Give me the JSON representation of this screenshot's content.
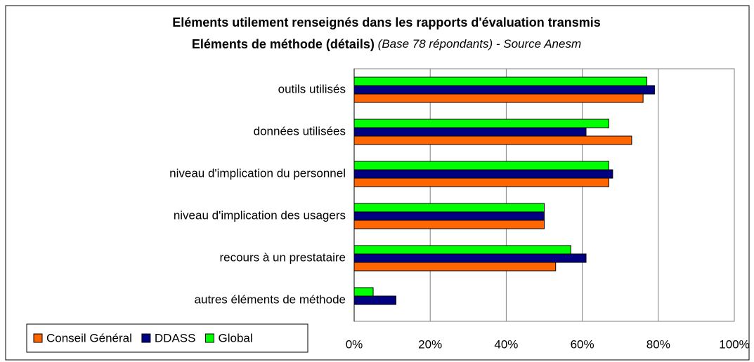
{
  "chart_data": {
    "type": "bar",
    "orientation": "horizontal",
    "title": "Eléments utilement renseignés dans les rapports d'évaluation transmis",
    "subtitle": "Eléments de méthode (détails)",
    "note": "(Base 78 répondants) - Source Anesm",
    "categories": [
      "outils utilisés",
      "données utilisées",
      "niveau d'implication du personnel",
      "niveau d'implication des usagers",
      "recours à un prestataire",
      "autres éléments de méthode"
    ],
    "series": [
      {
        "name": "Conseil Général",
        "color": "#ff6600",
        "values": [
          76,
          73,
          67,
          50,
          53,
          0
        ]
      },
      {
        "name": "DDASS",
        "color": "#000080",
        "values": [
          79,
          61,
          68,
          50,
          61,
          11
        ]
      },
      {
        "name": "Global",
        "color": "#00ff00",
        "values": [
          77,
          67,
          67,
          50,
          57,
          5
        ]
      }
    ],
    "xlim": [
      0,
      100
    ],
    "xticks": [
      {
        "value": 0,
        "label": "0%"
      },
      {
        "value": 20,
        "label": "20%"
      },
      {
        "value": 40,
        "label": "40%"
      },
      {
        "value": 60,
        "label": "60%"
      },
      {
        "value": 80,
        "label": "80%"
      },
      {
        "value": 100,
        "label": "100%"
      }
    ],
    "grid": true,
    "legend": "bottom-left"
  }
}
